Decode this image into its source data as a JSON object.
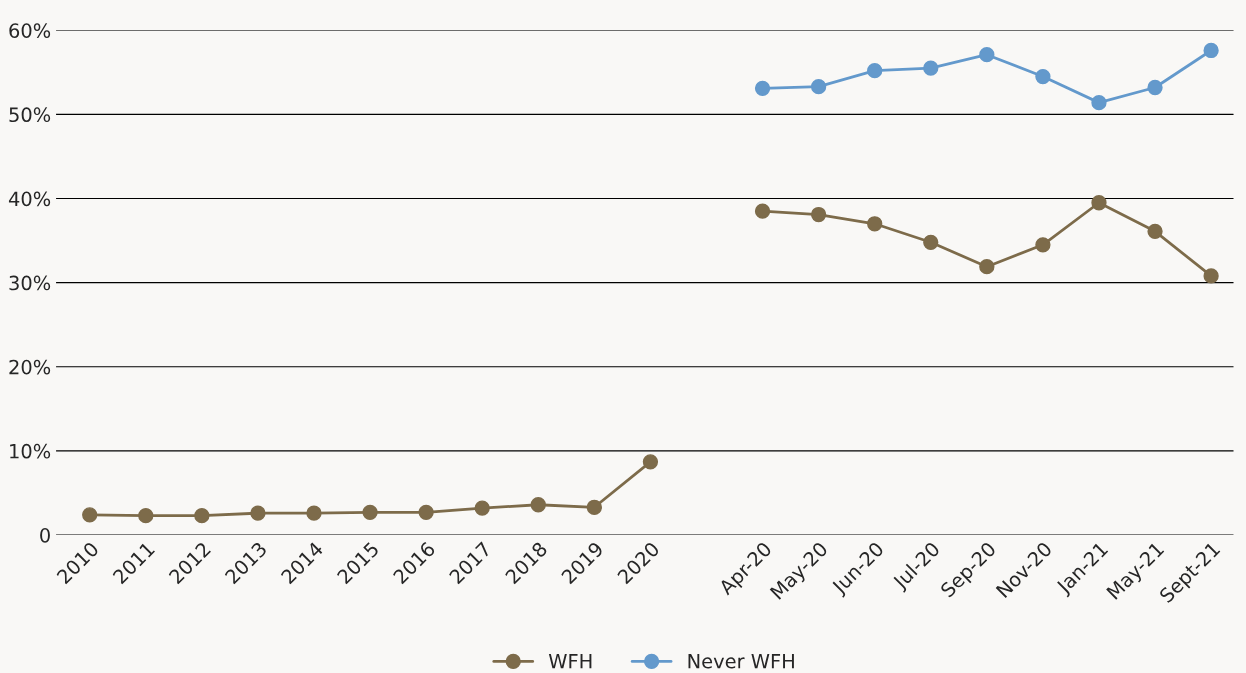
{
  "chart_data": {
    "type": "line",
    "categories": [
      "2010",
      "2011",
      "2012",
      "2013",
      "2014",
      "2015",
      "2016",
      "2017",
      "2018",
      "2019",
      "2020",
      null,
      "Apr-20",
      "May-20",
      "Jun-20",
      "Jul-20",
      "Sep-20",
      "Nov-20",
      "Jan-21",
      "May-21",
      "Sept-21"
    ],
    "series": [
      {
        "name": "WFH",
        "color": "#7d6b4a",
        "values": [
          2.4,
          2.3,
          2.3,
          2.6,
          2.6,
          2.7,
          2.7,
          3.2,
          3.6,
          3.3,
          8.7,
          null,
          38.5,
          38.1,
          37.0,
          34.8,
          31.9,
          34.5,
          39.5,
          36.1,
          30.8
        ]
      },
      {
        "name": "Never WFH",
        "color": "#6399cc",
        "values": [
          null,
          null,
          null,
          null,
          null,
          null,
          null,
          null,
          null,
          null,
          null,
          null,
          53.1,
          53.3,
          55.2,
          55.5,
          57.1,
          54.5,
          51.4,
          53.2,
          57.6
        ]
      }
    ],
    "ylim": [
      0,
      60
    ],
    "yticks": [
      0,
      {
        "value": 10,
        "label": "10%"
      },
      {
        "value": 20,
        "label": "20%"
      },
      {
        "value": 30,
        "label": "30%"
      },
      {
        "value": 40,
        "label": "40%"
      },
      {
        "value": 50,
        "label": "50%"
      },
      {
        "value": 60,
        "label": "60%"
      }
    ],
    "grid": "y",
    "legend": "bottom",
    "marker": "circle",
    "line_style": "solid"
  }
}
